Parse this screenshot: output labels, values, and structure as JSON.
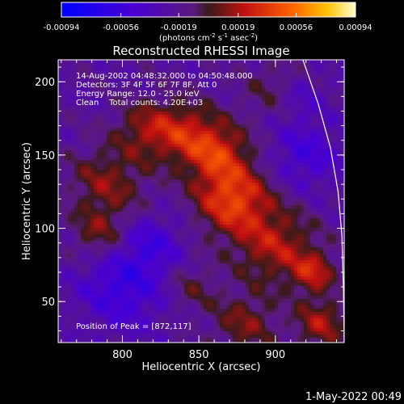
{
  "chart_data": {
    "type": "heatmap",
    "title": "Reconstructed RHESSI Image",
    "xlabel": "Heliocentric X (arcsec)",
    "ylabel": "Heliocentric Y (arcsec)",
    "xlim": [
      758,
      945
    ],
    "ylim": [
      22,
      215
    ],
    "x_ticks": [
      800,
      850,
      900
    ],
    "y_ticks": [
      50,
      100,
      150,
      200
    ],
    "colorbar": {
      "range": [
        -0.00094,
        0.00094
      ],
      "tick_values": [
        -0.00094,
        -0.00056,
        -0.00019,
        0.00019,
        0.00056,
        0.00094
      ],
      "tick_labels": [
        "-0.00094",
        "-0.00056",
        "-0.00019",
        "0.00019",
        "0.00056",
        "0.00094"
      ],
      "label_prefix": "(photons cm",
      "label_exp1": "-2",
      "label_mid1": " s",
      "label_exp2": "-1",
      "label_mid2": " asec",
      "label_exp3": "-2",
      "label_suffix": ")"
    },
    "annotations": [
      "14-Aug-2002 04:48:32.000 to 04:50:48.000",
      "Detectors: 3F 4F 5F 6F 7F 8F, Att 0",
      "Energy Range: 12.0 - 25.0 keV",
      "Clean    Total counts: 4.20E+03"
    ],
    "peak_label": "Position of Peak = [872,117]",
    "peak": {
      "x": 872,
      "y": 117
    },
    "limb_curve": [
      [
        918,
        215
      ],
      [
        928,
        185
      ],
      [
        936,
        155
      ],
      [
        941,
        125
      ],
      [
        943.5,
        95
      ],
      [
        944.5,
        60
      ],
      [
        945,
        22
      ]
    ],
    "blobs": [
      {
        "x": 872,
        "y": 120,
        "sigma": 17,
        "amp": 0.0006
      },
      {
        "x": 862,
        "y": 152,
        "sigma": 14,
        "amp": 0.00045
      },
      {
        "x": 840,
        "y": 165,
        "sigma": 15,
        "amp": 0.0004
      },
      {
        "x": 815,
        "y": 168,
        "sigma": 14,
        "amp": 0.0003
      },
      {
        "x": 790,
        "y": 130,
        "sigma": 18,
        "amp": 0.00032
      },
      {
        "x": 785,
        "y": 95,
        "sigma": 12,
        "amp": 0.00028
      },
      {
        "x": 900,
        "y": 88,
        "sigma": 18,
        "amp": 0.0004
      },
      {
        "x": 925,
        "y": 70,
        "sigma": 10,
        "amp": 0.0004
      },
      {
        "x": 930,
        "y": 35,
        "sigma": 12,
        "amp": 0.00038
      },
      {
        "x": 880,
        "y": 35,
        "sigma": 15,
        "amp": 0.0003
      },
      {
        "x": 845,
        "y": 60,
        "sigma": 12,
        "amp": 0.0002
      },
      {
        "x": 900,
        "y": 195,
        "sigma": 15,
        "amp": 0.0002
      },
      {
        "x": 800,
        "y": 60,
        "sigma": 20,
        "amp": -0.00035
      },
      {
        "x": 820,
        "y": 90,
        "sigma": 14,
        "amp": -0.00025
      },
      {
        "x": 920,
        "y": 150,
        "sigma": 16,
        "amp": -0.00028
      },
      {
        "x": 915,
        "y": 190,
        "sigma": 12,
        "amp": -0.0002
      }
    ]
  },
  "timestamp": "1-May-2022 00:49"
}
